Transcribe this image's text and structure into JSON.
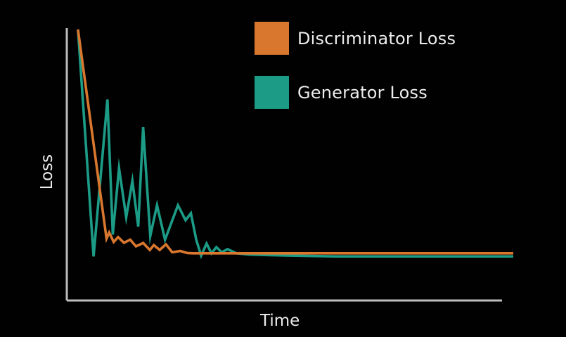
{
  "colors": {
    "background": "#010101",
    "axis": "#bdbdbd",
    "text": "#ececec",
    "discriminator": "#d9772f",
    "generator": "#1c9c86"
  },
  "legend": {
    "discriminator_label": "Discriminator Loss",
    "generator_label": "Generator Loss"
  },
  "chart_data": {
    "type": "line",
    "title": "",
    "xlabel": "Time",
    "ylabel": "Loss",
    "xlim": [
      0,
      100
    ],
    "ylim": [
      0,
      100
    ],
    "grid": false,
    "legend_position": "top-right",
    "ticks": "none",
    "series": [
      {
        "name": "Discriminator Loss",
        "color": "#d9772f",
        "x": [
          2.5,
          8.9,
          9.5,
          10.5,
          11.5,
          12.8,
          14.2,
          15.5,
          17.1,
          18.6,
          19.5,
          20.8,
          22.2,
          23.6,
          25.4,
          27.0,
          28.3,
          30.0,
          40,
          60,
          80,
          100
        ],
        "y": [
          100,
          18.6,
          21.0,
          17.3,
          19.2,
          17.0,
          18.2,
          15.6,
          16.9,
          14.2,
          16.1,
          14.2,
          16.4,
          13.3,
          13.8,
          13.0,
          12.9,
          12.9,
          12.9,
          12.9,
          12.9,
          12.9
        ]
      },
      {
        "name": "Generator Loss",
        "color": "#1c9c86",
        "x": [
          2.5,
          6.0,
          9.1,
          10.3,
          11.7,
          13.3,
          14.7,
          16.0,
          17.1,
          18.7,
          20.2,
          22.0,
          24.9,
          26.6,
          27.8,
          29.0,
          30.1,
          31.3,
          32.4,
          33.5,
          34.7,
          36.0,
          38.0,
          41.0,
          50,
          60,
          75,
          90,
          100
        ],
        "y": [
          100,
          11.7,
          72.8,
          20.2,
          46.0,
          26.9,
          41.1,
          23.3,
          62.0,
          19.6,
          31.6,
          18.2,
          31.6,
          25.8,
          28.5,
          18.2,
          12.0,
          16.7,
          12.9,
          15.3,
          13.3,
          14.5,
          12.9,
          12.4,
          12.0,
          11.7,
          11.7,
          11.7,
          11.7
        ]
      }
    ]
  }
}
